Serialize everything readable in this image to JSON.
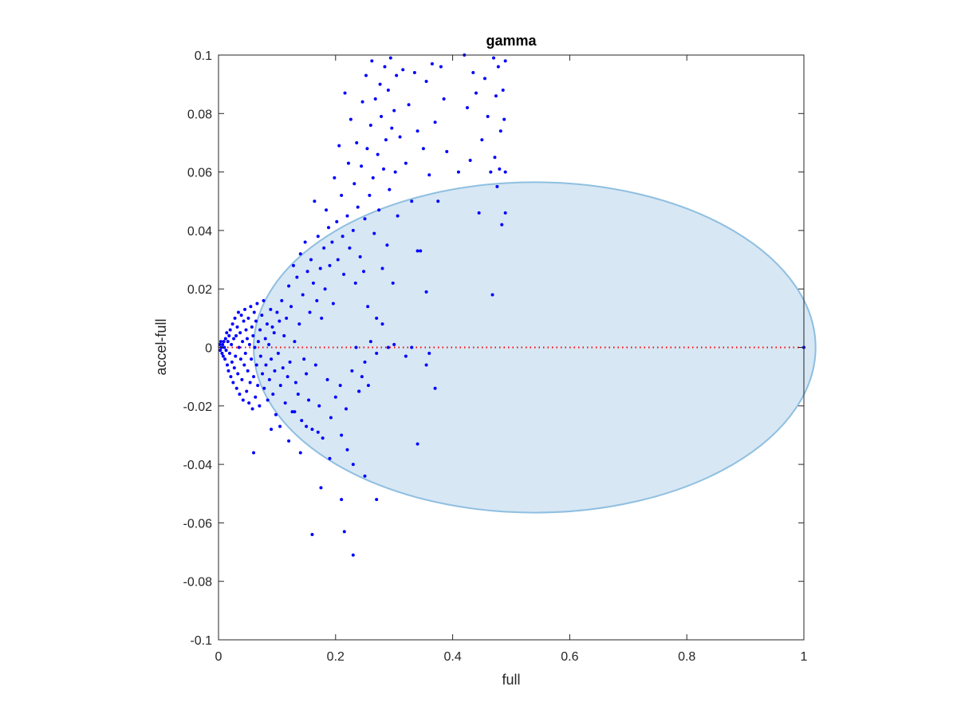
{
  "chart_data": {
    "type": "scatter",
    "title": "gamma",
    "xlabel": "full",
    "ylabel": "accel-full",
    "xlim": [
      0,
      1
    ],
    "ylim": [
      -0.1,
      0.1
    ],
    "xticks": [
      0,
      0.2,
      0.4,
      0.6,
      0.8,
      1
    ],
    "xtick_labels": [
      "0",
      "0.2",
      "0.4",
      "0.6",
      "0.8",
      "1"
    ],
    "yticks": [
      0.1,
      0.08,
      0.06,
      0.04,
      0.02,
      0,
      -0.02,
      -0.04,
      -0.06,
      -0.08,
      -0.1
    ],
    "ytick_labels": [
      "0.1",
      "0.08",
      "0.06",
      "0.04",
      "0.02",
      "0",
      "-0.02",
      "-0.04",
      "-0.06",
      "-0.08",
      "-0.1"
    ],
    "grid": false,
    "colors": {
      "points": "#0000ff",
      "ellipse_fill": "#d7e7f4",
      "ellipse_edge": "#8fbfe0",
      "zero_line": "#ff0000",
      "axes": "#262626"
    },
    "reference_line": {
      "y": 0,
      "style": "dotted"
    },
    "ellipse": {
      "cx": 0.54,
      "cy": 0,
      "rx": 0.48,
      "ry": 0.0565
    },
    "points": [
      [
        0.002,
        0.001
      ],
      [
        0.003,
        -0.001
      ],
      [
        0.004,
        0.002
      ],
      [
        0.005,
        0
      ],
      [
        0.006,
        -0.002
      ],
      [
        0.007,
        0.001
      ],
      [
        0.008,
        -0.003
      ],
      [
        0.009,
        0.002
      ],
      [
        0.01,
        0
      ],
      [
        0.011,
        -0.004
      ],
      [
        0.012,
        0.003
      ],
      [
        0.013,
        -0.001
      ],
      [
        0.014,
        0.005
      ],
      [
        0.015,
        -0.006
      ],
      [
        0.016,
        0.002
      ],
      [
        0.017,
        -0.008
      ],
      [
        0.018,
        0.004
      ],
      [
        0.019,
        -0.002
      ],
      [
        0.02,
        0.006
      ],
      [
        0.021,
        -0.01
      ],
      [
        0.022,
        0.001
      ],
      [
        0.023,
        -0.005
      ],
      [
        0.024,
        0.008
      ],
      [
        0.025,
        -0.012
      ],
      [
        0.026,
        0.003
      ],
      [
        0.027,
        -0.007
      ],
      [
        0.028,
        0.01
      ],
      [
        0.029,
        -0.003
      ],
      [
        0.03,
        0.004
      ],
      [
        0.031,
        -0.014
      ],
      [
        0.032,
        0.007
      ],
      [
        0.033,
        -0.009
      ],
      [
        0.034,
        0.012
      ],
      [
        0.035,
        0
      ],
      [
        0.036,
        -0.016
      ],
      [
        0.037,
        0.005
      ],
      [
        0.038,
        -0.004
      ],
      [
        0.039,
        0.011
      ],
      [
        0.04,
        -0.011
      ],
      [
        0.041,
        0.002
      ],
      [
        0.042,
        -0.018
      ],
      [
        0.043,
        0.009
      ],
      [
        0.044,
        -0.006
      ],
      [
        0.045,
        0.013
      ],
      [
        0.046,
        -0.002
      ],
      [
        0.047,
        0.006
      ],
      [
        0.048,
        -0.015
      ],
      [
        0.049,
        0.003
      ],
      [
        0.05,
        -0.008
      ],
      [
        0.051,
        0.01
      ],
      [
        0.052,
        -0.019
      ],
      [
        0.053,
        0.001
      ],
      [
        0.054,
        -0.012
      ],
      [
        0.055,
        0.014
      ],
      [
        0.056,
        -0.004
      ],
      [
        0.057,
        0.007
      ],
      [
        0.058,
        -0.021
      ],
      [
        0.059,
        0.004
      ],
      [
        0.06,
        -0.01
      ],
      [
        0.061,
        0.012
      ],
      [
        0.062,
        0
      ],
      [
        0.063,
        -0.017
      ],
      [
        0.064,
        0.009
      ],
      [
        0.065,
        -0.006
      ],
      [
        0.066,
        0.015
      ],
      [
        0.067,
        -0.013
      ],
      [
        0.068,
        0.002
      ],
      [
        0.07,
        -0.02
      ],
      [
        0.071,
        0.006
      ],
      [
        0.072,
        -0.003
      ],
      [
        0.074,
        0.011
      ],
      [
        0.075,
        -0.009
      ],
      [
        0.077,
        0.016
      ],
      [
        0.078,
        -0.014
      ],
      [
        0.08,
        0.003
      ],
      [
        0.081,
        -0.006
      ],
      [
        0.083,
        0.008
      ],
      [
        0.084,
        -0.018
      ],
      [
        0.086,
        0.001
      ],
      [
        0.087,
        -0.011
      ],
      [
        0.089,
        0.013
      ],
      [
        0.09,
        -0.004
      ],
      [
        0.092,
        0.007
      ],
      [
        0.093,
        -0.016
      ],
      [
        0.095,
        0.005
      ],
      [
        0.096,
        -0.008
      ],
      [
        0.098,
        -0.023
      ],
      [
        0.1,
        0.012
      ],
      [
        0.102,
        -0.002
      ],
      [
        0.104,
        0.009
      ],
      [
        0.106,
        -0.013
      ],
      [
        0.108,
        0.016
      ],
      [
        0.11,
        -0.007
      ],
      [
        0.112,
        0.004
      ],
      [
        0.114,
        -0.019
      ],
      [
        0.116,
        0.01
      ],
      [
        0.118,
        -0.01
      ],
      [
        0.12,
        0.021
      ],
      [
        0.122,
        -0.005
      ],
      [
        0.124,
        0.014
      ],
      [
        0.126,
        -0.022
      ],
      [
        0.128,
        0.028
      ],
      [
        0.13,
        0.002
      ],
      [
        0.132,
        -0.012
      ],
      [
        0.134,
        0.024
      ],
      [
        0.136,
        -0.016
      ],
      [
        0.138,
        0.008
      ],
      [
        0.14,
        0.032
      ],
      [
        0.142,
        -0.025
      ],
      [
        0.144,
        0.018
      ],
      [
        0.146,
        -0.004
      ],
      [
        0.148,
        0.036
      ],
      [
        0.15,
        -0.009
      ],
      [
        0.152,
        0.026
      ],
      [
        0.154,
        -0.018
      ],
      [
        0.156,
        0.012
      ],
      [
        0.158,
        0.03
      ],
      [
        0.16,
        -0.028
      ],
      [
        0.162,
        0.022
      ],
      [
        0.164,
        0.05
      ],
      [
        0.166,
        -0.006
      ],
      [
        0.168,
        0.016
      ],
      [
        0.17,
        0.038
      ],
      [
        0.172,
        -0.02
      ],
      [
        0.174,
        0.027
      ],
      [
        0.176,
        0.01
      ],
      [
        0.178,
        -0.031
      ],
      [
        0.18,
        0.034
      ],
      [
        0.182,
        0.02
      ],
      [
        0.184,
        0.047
      ],
      [
        0.186,
        -0.011
      ],
      [
        0.188,
        0.041
      ],
      [
        0.19,
        0.028
      ],
      [
        0.192,
        -0.024
      ],
      [
        0.194,
        0.036
      ],
      [
        0.196,
        0.015
      ],
      [
        0.198,
        0.058
      ],
      [
        0.2,
        -0.017
      ],
      [
        0.202,
        0.043
      ],
      [
        0.204,
        0.03
      ],
      [
        0.206,
        0.069
      ],
      [
        0.208,
        -0.013
      ],
      [
        0.21,
        0.052
      ],
      [
        0.212,
        0.038
      ],
      [
        0.214,
        0.025
      ],
      [
        0.216,
        0.087
      ],
      [
        0.218,
        -0.021
      ],
      [
        0.22,
        0.045
      ],
      [
        0.222,
        0.063
      ],
      [
        0.224,
        0.034
      ],
      [
        0.226,
        0.078
      ],
      [
        0.228,
        -0.008
      ],
      [
        0.23,
        0.04
      ],
      [
        0.232,
        0.056
      ],
      [
        0.234,
        0.022
      ],
      [
        0.236,
        0.07
      ],
      [
        0.238,
        0.048
      ],
      [
        0.24,
        -0.015
      ],
      [
        0.242,
        0.031
      ],
      [
        0.244,
        0.062
      ],
      [
        0.246,
        0.084
      ],
      [
        0.248,
        0.026
      ],
      [
        0.25,
        0.044
      ],
      [
        0.252,
        0.093
      ],
      [
        0.254,
        0.068
      ],
      [
        0.256,
        -0.013
      ],
      [
        0.258,
        0.052
      ],
      [
        0.26,
        0.076
      ],
      [
        0.262,
        0.098
      ],
      [
        0.264,
        0.058
      ],
      [
        0.266,
        0.039
      ],
      [
        0.268,
        0.085
      ],
      [
        0.27,
        -0.002
      ],
      [
        0.272,
        0.066
      ],
      [
        0.274,
        0.047
      ],
      [
        0.276,
        0.09
      ],
      [
        0.278,
        0.079
      ],
      [
        0.28,
        0.027
      ],
      [
        0.282,
        0.061
      ],
      [
        0.284,
        0.096
      ],
      [
        0.286,
        0.071
      ],
      [
        0.288,
        0.035
      ],
      [
        0.29,
        0.088
      ],
      [
        0.292,
        0.054
      ],
      [
        0.294,
        0.099
      ],
      [
        0.296,
        0.075
      ],
      [
        0.298,
        0.022
      ],
      [
        0.3,
        0.081
      ],
      [
        0.302,
        0.06
      ],
      [
        0.304,
        0.093
      ],
      [
        0.306,
        0.045
      ],
      [
        0.31,
        0.072
      ],
      [
        0.315,
        0.095
      ],
      [
        0.32,
        0.063
      ],
      [
        0.325,
        0.083
      ],
      [
        0.33,
        0.05
      ],
      [
        0.335,
        0.094
      ],
      [
        0.34,
        0.074
      ],
      [
        0.345,
        0.033
      ],
      [
        0.35,
        0.068
      ],
      [
        0.355,
        0.091
      ],
      [
        0.36,
        0.059
      ],
      [
        0.365,
        0.097
      ],
      [
        0.37,
        0.077
      ],
      [
        0.375,
        0.05
      ],
      [
        0.38,
        0.096
      ],
      [
        0.385,
        0.085
      ],
      [
        0.39,
        0.067
      ],
      [
        0.41,
        0.06
      ],
      [
        0.42,
        0.1
      ],
      [
        0.425,
        0.082
      ],
      [
        0.43,
        0.064
      ],
      [
        0.435,
        0.094
      ],
      [
        0.44,
        0.087
      ],
      [
        0.445,
        0.046
      ],
      [
        0.45,
        0.071
      ],
      [
        0.455,
        0.092
      ],
      [
        0.46,
        0.079
      ],
      [
        0.465,
        0.06
      ],
      [
        0.468,
        0.018
      ],
      [
        0.47,
        0.099
      ],
      [
        0.472,
        0.065
      ],
      [
        0.474,
        0.086
      ],
      [
        0.476,
        0.055
      ],
      [
        0.478,
        0.096
      ],
      [
        0.48,
        0.061
      ],
      [
        0.482,
        0.074
      ],
      [
        0.484,
        0.042
      ],
      [
        0.486,
        0.088
      ],
      [
        0.488,
        0.078
      ],
      [
        0.49,
        0.098
      ],
      [
        0.49,
        0.046
      ],
      [
        0.49,
        0.06
      ],
      [
        0.12,
        -0.032
      ],
      [
        0.14,
        -0.036
      ],
      [
        0.16,
        -0.064
      ],
      [
        0.175,
        -0.048
      ],
      [
        0.19,
        -0.038
      ],
      [
        0.21,
        -0.052
      ],
      [
        0.215,
        -0.063
      ],
      [
        0.22,
        -0.035
      ],
      [
        0.25,
        -0.044
      ],
      [
        0.23,
        -0.071
      ],
      [
        0.27,
        -0.052
      ],
      [
        0.34,
        -0.033
      ],
      [
        0.37,
        -0.014
      ],
      [
        0.36,
        -0.002
      ],
      [
        0.33,
        0.0
      ],
      [
        0.3,
        0.001
      ],
      [
        0.29,
        0.0
      ],
      [
        0.32,
        -0.003
      ],
      [
        0.355,
        -0.006
      ],
      [
        0.355,
        0.019
      ],
      [
        0.34,
        0.033
      ],
      [
        0.06,
        -0.036
      ],
      [
        0.09,
        -0.028
      ],
      [
        0.105,
        -0.027
      ],
      [
        0.13,
        -0.022
      ],
      [
        0.15,
        -0.027
      ],
      [
        0.17,
        -0.029
      ],
      [
        0.21,
        -0.03
      ],
      [
        0.23,
        -0.04
      ],
      [
        0.24,
        -0.015
      ],
      [
        0.25,
        -0.005
      ],
      [
        0.26,
        0.002
      ],
      [
        0.27,
        0.01
      ],
      [
        0.28,
        0.008
      ],
      [
        0.235,
        0.0
      ],
      [
        0.245,
        -0.01
      ],
      [
        0.255,
        0.014
      ],
      [
        1.0,
        0.0
      ]
    ]
  }
}
